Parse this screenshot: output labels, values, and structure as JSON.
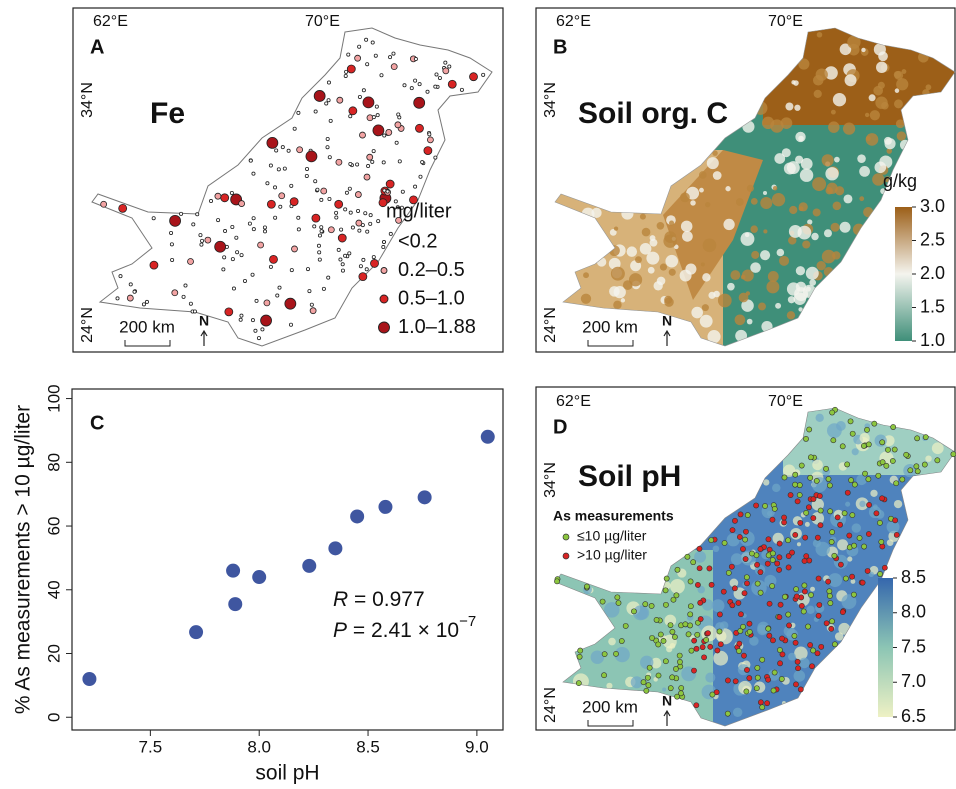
{
  "panels": {
    "A": {
      "label": "A",
      "title": "Fe",
      "lon_labels": [
        "62°E",
        "70°E"
      ],
      "lat_labels": [
        "34°N",
        "24°N"
      ],
      "scale_bar": "200 km",
      "north": "N",
      "legend": {
        "title": "mg/liter",
        "items": [
          {
            "name": "<0.2",
            "color": "#ffffff"
          },
          {
            "name": "0.2–0.5",
            "color": "#f2a3a3"
          },
          {
            "name": "0.5–1.0",
            "color": "#d82424"
          },
          {
            "name": "1.0–1.88",
            "color": "#a8141a"
          }
        ]
      }
    },
    "B": {
      "label": "B",
      "title": "Soil org. C",
      "lon_labels": [
        "62°E",
        "70°E"
      ],
      "lat_labels": [
        "34°N",
        "24°N"
      ],
      "scale_bar": "200 km",
      "north": "N",
      "colorbar": {
        "title": "g/kg",
        "lim": [
          1,
          3
        ],
        "colors": [
          "#3f8f79",
          "#f4f4ee",
          "#9c5f18"
        ],
        "ticks": [
          {
            "value": 3,
            "label": "3.0"
          },
          2.5,
          {
            "value": 2,
            "label": "2.0"
          },
          1.5,
          {
            "value": 1,
            "label": "1.0"
          }
        ]
      }
    },
    "D": {
      "label": "D",
      "title": "Soil pH",
      "lon_labels": [
        "62°E",
        "70°E"
      ],
      "lat_labels": [
        "34°N",
        "24°N"
      ],
      "scale_bar": "200 km",
      "north": "N",
      "legend": {
        "title": "As measurements",
        "items": [
          {
            "name": "≤10 µg/liter",
            "color": "#8cc63f"
          },
          {
            "name": ">10 µg/liter",
            "color": "#d82424"
          }
        ]
      },
      "colorbar": {
        "lim": [
          6.5,
          8.5
        ],
        "colors": [
          "#eef1c4",
          "#8cc5b4",
          "#3567ad"
        ],
        "ticks": [
          8.5,
          {
            "value": 8,
            "label": "8.0"
          },
          7.5,
          {
            "value": 7,
            "label": "7.0"
          },
          6.5
        ]
      }
    }
  },
  "chart_data": {
    "type": "scatter",
    "panel_label": "C",
    "x_label": "soil pH",
    "y_label": "% As measurements > 10 µg/liter",
    "x": [
      7.22,
      7.71,
      7.88,
      7.89,
      8.0,
      8.23,
      8.35,
      8.45,
      8.58,
      8.76,
      9.05
    ],
    "values": [
      12,
      26.7,
      46,
      35.5,
      44,
      47.5,
      53,
      63,
      66,
      69,
      88
    ],
    "color": "#3f56a0",
    "xlim": [
      7.14,
      9.12
    ],
    "ylim": [
      -4,
      103
    ],
    "xticks": [
      7.5,
      {
        "value": 8,
        "label": "8.0"
      },
      8.5,
      {
        "value": 9,
        "label": "9.0"
      }
    ],
    "yticks": [
      0,
      20,
      40,
      60,
      80,
      100
    ],
    "annotations": [
      {
        "symbol": "R",
        "text": " = 0.977"
      },
      {
        "symbol": "P",
        "text": " = 2.41 × 10",
        "exponent": "−7"
      }
    ]
  }
}
